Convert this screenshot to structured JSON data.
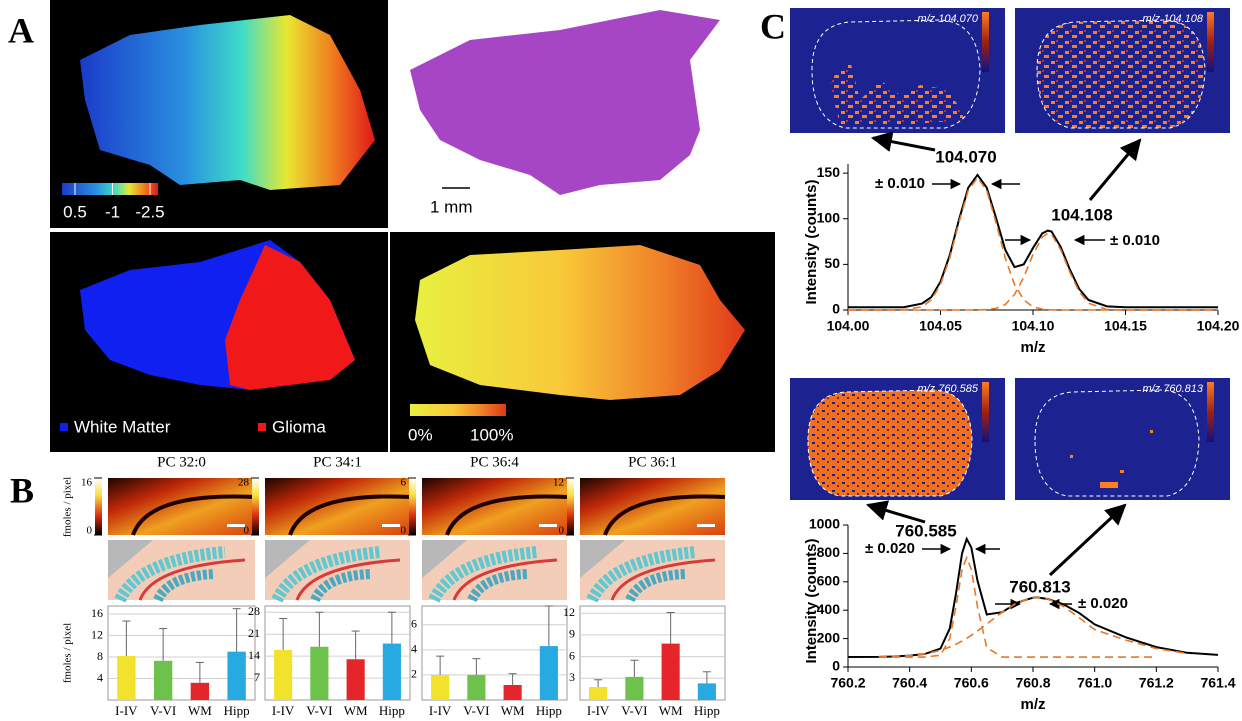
{
  "panel_a": {
    "label": "A",
    "colorbar_ticks": [
      0.5,
      -1,
      -2.5
    ],
    "scale_bar": "1 mm",
    "legend": [
      "White Matter",
      "Glioma"
    ],
    "percent_scale": [
      "0%",
      "100%"
    ]
  },
  "panel_b": {
    "label": "B"
  },
  "panel_c": {
    "label": "C",
    "ion_images": [
      "m/z 104.070",
      "m/z 104.108",
      "m/z 760.585",
      "m/z 760.813"
    ]
  },
  "chart_data": [
    {
      "type": "bar",
      "title": "PC 32:0",
      "ylabel": "fmoles / pixel",
      "colorbar_range": [
        0,
        16
      ],
      "categories": [
        "I-IV",
        "V-VI",
        "WM",
        "Hipp"
      ],
      "values": [
        8.2,
        7.3,
        3.2,
        9.0
      ],
      "errors": [
        6.5,
        6.0,
        3.8,
        8.0
      ],
      "colors": [
        "#f2e22c",
        "#6cc24a",
        "#e4262a",
        "#27a9e1"
      ],
      "ylim": [
        0,
        17.5
      ],
      "yticks": [
        4,
        8,
        12,
        16
      ],
      "grid": true
    },
    {
      "type": "bar",
      "title": "PC 34:1",
      "colorbar_range": [
        0,
        28
      ],
      "categories": [
        "I-IV",
        "V-VI",
        "WM",
        "Hipp"
      ],
      "values": [
        16,
        17,
        13,
        18
      ],
      "errors": [
        10,
        11,
        9,
        10
      ],
      "colors": [
        "#f2e22c",
        "#6cc24a",
        "#e4262a",
        "#27a9e1"
      ],
      "ylim": [
        0,
        30
      ],
      "yticks": [
        7,
        14,
        21,
        28
      ],
      "grid": true
    },
    {
      "type": "bar",
      "title": "PC 36:4",
      "colorbar_range": [
        0,
        6
      ],
      "categories": [
        "I-IV",
        "V-VI",
        "WM",
        "Hipp"
      ],
      "values": [
        2.0,
        2.0,
        1.2,
        4.3
      ],
      "errors": [
        1.5,
        1.3,
        0.9,
        3.2
      ],
      "colors": [
        "#f2e22c",
        "#6cc24a",
        "#e4262a",
        "#27a9e1"
      ],
      "ylim": [
        0,
        7.5
      ],
      "yticks": [
        2,
        4,
        6
      ],
      "grid": true
    },
    {
      "type": "bar",
      "title": "PC 36:1",
      "colorbar_range": [
        0,
        12
      ],
      "categories": [
        "I-IV",
        "V-VI",
        "WM",
        "Hipp"
      ],
      "values": [
        1.8,
        3.2,
        7.8,
        2.3
      ],
      "errors": [
        1.0,
        2.3,
        4.3,
        1.6
      ],
      "colors": [
        "#f2e22c",
        "#6cc24a",
        "#e4262a",
        "#27a9e1"
      ],
      "ylim": [
        0,
        13
      ],
      "yticks": [
        3,
        6,
        9,
        12
      ],
      "grid": true
    },
    {
      "type": "line",
      "xlabel": "m/z",
      "ylabel": "Intensity (counts)",
      "x": [
        104.0,
        104.02,
        104.03,
        104.04,
        104.045,
        104.05,
        104.055,
        104.06,
        104.065,
        104.07,
        104.075,
        104.08,
        104.085,
        104.09,
        104.095,
        104.1,
        104.105,
        104.108,
        104.11,
        104.115,
        104.12,
        104.125,
        104.13,
        104.14,
        104.15,
        104.17,
        104.2
      ],
      "series": [
        {
          "color": "#000000",
          "dashed": false,
          "values": [
            3,
            3,
            3,
            7,
            14,
            31,
            60,
            99,
            134,
            148,
            134,
            101,
            66,
            47,
            50,
            68,
            84,
            87,
            86,
            69,
            44,
            23,
            11,
            4,
            3,
            3,
            3
          ]
        },
        {
          "color": "#e8782a",
          "dashed": true,
          "values": [
            0,
            0,
            0.2,
            3.5,
            11,
            28,
            57,
            96,
            131,
            145,
            131,
            96,
            57,
            28,
            11,
            3.5,
            0.9,
            0.3,
            0.2,
            0,
            0,
            0,
            0,
            0,
            0,
            0,
            0
          ]
        },
        {
          "color": "#e8782a",
          "dashed": true,
          "values": [
            0,
            0,
            0,
            0,
            0,
            0,
            0,
            0,
            0,
            0,
            0.4,
            1.8,
            6,
            17,
            36,
            61,
            80,
            84,
            83,
            66,
            41,
            20,
            7.5,
            0.5,
            0,
            0,
            0
          ]
        }
      ],
      "xlim": [
        104.0,
        104.2
      ],
      "xticks": [
        {
          "value": 104.0,
          "label": "104.00"
        },
        {
          "value": 104.05,
          "label": "104.05"
        },
        {
          "value": 104.1,
          "label": "104.10"
        },
        {
          "value": 104.15,
          "label": "104.15"
        },
        {
          "value": 104.2,
          "label": "104.20"
        }
      ],
      "ylim": [
        0,
        160
      ],
      "yticks": [
        0,
        50,
        100,
        150
      ],
      "annotations": [
        "104.070",
        "± 0.010",
        "104.108",
        "± 0.010"
      ]
    },
    {
      "type": "line",
      "xlabel": "m/z",
      "ylabel": "Intensity (counts)",
      "x": [
        760.2,
        760.3,
        760.35,
        760.4,
        760.45,
        760.5,
        760.53,
        760.55,
        760.57,
        760.585,
        760.6,
        760.62,
        760.65,
        760.7,
        760.75,
        760.8,
        760.813,
        760.85,
        760.9,
        760.95,
        761.0,
        761.1,
        761.2,
        761.3,
        761.4
      ],
      "series": [
        {
          "color": "#000000",
          "dashed": false,
          "values": [
            70,
            71,
            74,
            80,
            92,
            130,
            271,
            514,
            801,
            902,
            841,
            608,
            370,
            386,
            455,
            488,
            490,
            478,
            440,
            380,
            300,
            210,
            140,
            100,
            85
          ]
        },
        {
          "color": "#e8782a",
          "dashed": true,
          "values": [
            null,
            70,
            70,
            70,
            70,
            83,
            200,
            424,
            688,
            770,
            688,
            424,
            137,
            70,
            70,
            70,
            70,
            70,
            70,
            70,
            70,
            70,
            70,
            null,
            null
          ]
        },
        {
          "color": "#e8782a",
          "dashed": true,
          "values": [
            null,
            71,
            74,
            80,
            92,
            117,
            141,
            160,
            183,
            202,
            223,
            254,
            303,
            386,
            455,
            488,
            490,
            478,
            425,
            347,
            263,
            190,
            130,
            95,
            null
          ]
        }
      ],
      "xlim": [
        760.2,
        761.4
      ],
      "xticks": [
        760.2,
        760.4,
        760.6,
        760.8,
        {
          "value": 761.0,
          "label": "761.0"
        },
        761.2,
        761.4
      ],
      "ylim": [
        0,
        1000
      ],
      "yticks": [
        0,
        200,
        400,
        600,
        800,
        1000
      ],
      "annotations": [
        "760.585",
        "± 0.020",
        "760.813",
        "± 0.020"
      ]
    }
  ]
}
